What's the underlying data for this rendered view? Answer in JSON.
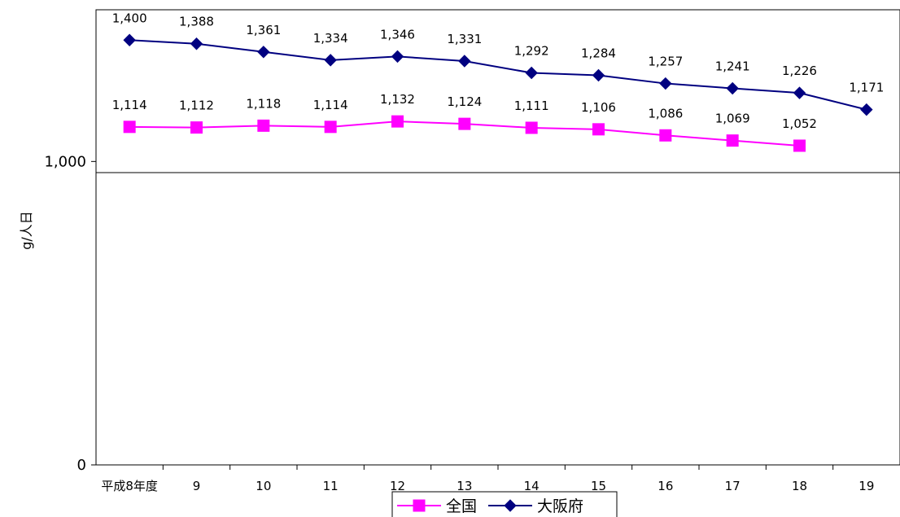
{
  "chart_data": {
    "type": "line",
    "categories": [
      "平成8年度",
      "9",
      "10",
      "11",
      "12",
      "13",
      "14",
      "15",
      "16",
      "17",
      "18",
      "19"
    ],
    "series": [
      {
        "name": "全国",
        "color": "#ff00ff",
        "marker": "square",
        "values": [
          1114,
          1112,
          1118,
          1114,
          1132,
          1124,
          1111,
          1106,
          1086,
          1069,
          1052,
          null
        ],
        "labels": [
          "1,114",
          "1,112",
          "1,118",
          "1,114",
          "1,132",
          "1,124",
          "1,111",
          "1,106",
          "1,086",
          "1,069",
          "1,052",
          null
        ]
      },
      {
        "name": "大阪府",
        "color": "#000080",
        "marker": "diamond",
        "values": [
          1400,
          1388,
          1361,
          1334,
          1346,
          1331,
          1292,
          1284,
          1257,
          1241,
          1226,
          1171
        ],
        "labels": [
          "1,400",
          "1,388",
          "1,361",
          "1,334",
          "1,346",
          "1,331",
          "1,292",
          "1,284",
          "1,257",
          "1,241",
          "1,226",
          "1,171"
        ]
      }
    ],
    "ylabel": "g/人日",
    "yticks": [
      0,
      1000
    ],
    "ytick_labels": [
      "0",
      "1,000"
    ],
    "ylim": [
      0,
      1500
    ],
    "grid": "horizontal at 1,000",
    "legend_position": "bottom"
  }
}
